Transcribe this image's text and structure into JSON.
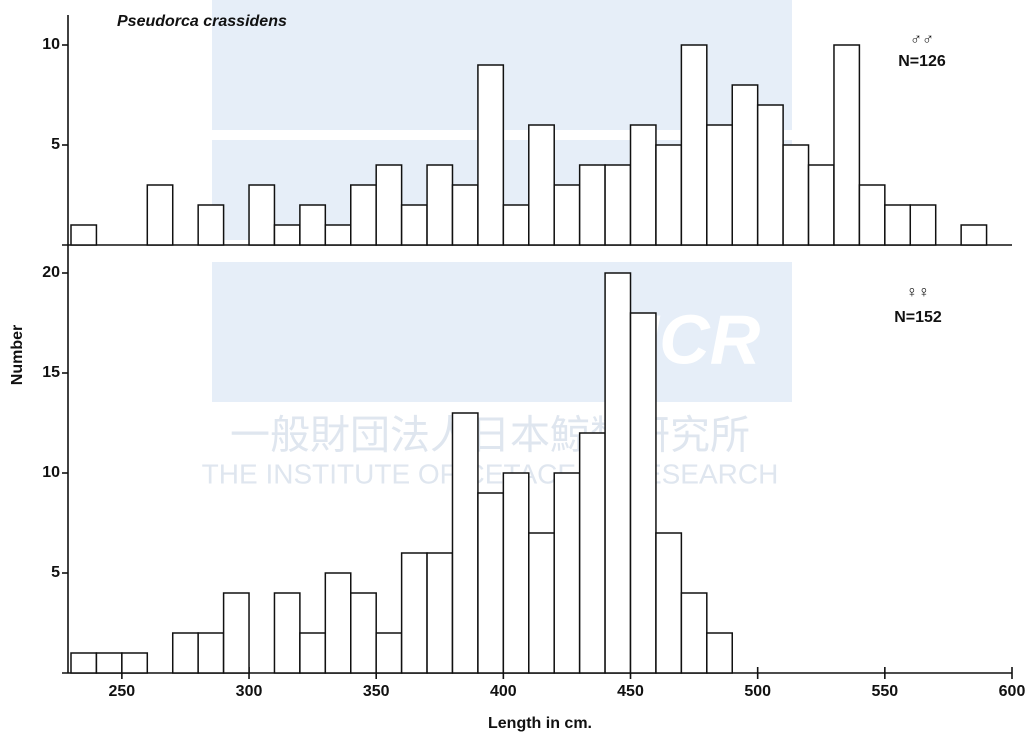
{
  "watermark": {
    "logo": "ICR",
    "japanese": "一般財団法人日本鯨類研究所",
    "english": "THE INSTITUTE OF CETACEAN RESEARCH"
  },
  "chart_data": [
    {
      "type": "histogram",
      "title": "Pseudorca crassidens",
      "group": "♂♂",
      "n_label": "N=126",
      "color": "#ffffff",
      "edgecolor": "#111111",
      "bins": [
        230,
        240,
        250,
        260,
        270,
        280,
        290,
        300,
        310,
        320,
        330,
        340,
        350,
        360,
        370,
        380,
        390,
        400,
        410,
        420,
        430,
        440,
        450,
        460,
        470,
        480,
        490,
        500,
        510,
        520,
        530,
        540,
        550,
        560,
        570,
        580,
        590
      ],
      "values": [
        1,
        0,
        0,
        3,
        0,
        2,
        0,
        3,
        1,
        2,
        1,
        3,
        4,
        2,
        4,
        3,
        9,
        2,
        6,
        3,
        4,
        4,
        6,
        5,
        10,
        6,
        8,
        7,
        5,
        4,
        10,
        3,
        2,
        2,
        0,
        1
      ],
      "xlim": [
        230,
        600
      ],
      "ylim": [
        0,
        11.5
      ],
      "yticks": [
        5,
        10
      ]
    },
    {
      "type": "histogram",
      "group": "♀♀",
      "n_label": "N=152",
      "ylabel": "Number",
      "xlabel": "Length in cm.",
      "color": "#ffffff",
      "edgecolor": "#111111",
      "bins": [
        230,
        240,
        250,
        260,
        270,
        280,
        290,
        300,
        310,
        320,
        330,
        340,
        350,
        360,
        370,
        380,
        390,
        400,
        410,
        420,
        430,
        440,
        450,
        460,
        470,
        480,
        490
      ],
      "values": [
        1,
        1,
        1,
        0,
        2,
        2,
        4,
        0,
        4,
        2,
        5,
        4,
        2,
        6,
        6,
        13,
        9,
        10,
        7,
        10,
        12,
        20,
        18,
        7,
        4,
        2
      ],
      "xlim": [
        230,
        600
      ],
      "ylim": [
        0,
        21.4
      ],
      "yticks": [
        5,
        10,
        15,
        20
      ],
      "xticks": [
        250,
        300,
        350,
        400,
        450,
        500,
        550,
        600
      ]
    }
  ]
}
